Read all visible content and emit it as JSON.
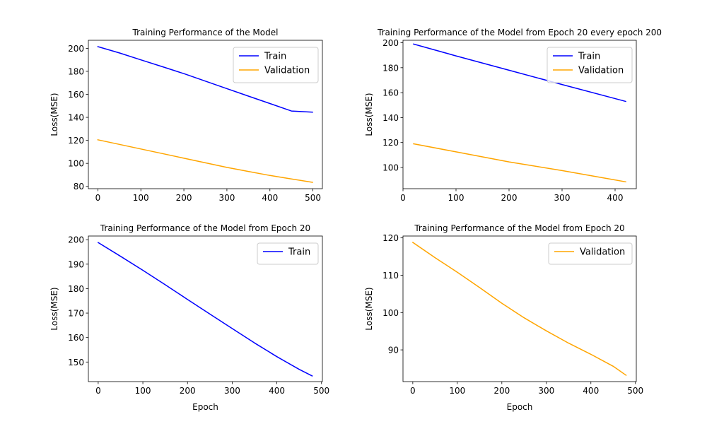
{
  "chart_data": [
    {
      "type": "line",
      "title": "Training Performance of the Model",
      "xlabel": "",
      "ylabel": "Loss(MSE)",
      "xlim": [
        -22,
        522
      ],
      "ylim": [
        78,
        207
      ],
      "xticks": [
        0,
        100,
        200,
        300,
        400,
        500
      ],
      "yticks": [
        80,
        100,
        120,
        140,
        160,
        180,
        200
      ],
      "legend": "top-right",
      "grid": false,
      "series": [
        {
          "name": "Train",
          "color": "#0000ff",
          "x": [
            0,
            50,
            100,
            150,
            200,
            250,
            300,
            350,
            400,
            450,
            499
          ],
          "y": [
            201.5,
            196,
            190,
            184,
            178,
            171.5,
            165,
            158.5,
            152,
            145.5,
            144.5
          ]
        },
        {
          "name": "Validation",
          "color": "#ffa500",
          "x": [
            0,
            50,
            100,
            150,
            200,
            250,
            300,
            350,
            400,
            450,
            499
          ],
          "y": [
            120.5,
            116.5,
            112.5,
            108.5,
            104.5,
            100.5,
            96.5,
            93,
            89.5,
            86.5,
            83.5
          ]
        }
      ]
    },
    {
      "type": "line",
      "title": "Training Performance of the Model from Epoch 20 every epoch 200",
      "xlabel": "",
      "ylabel": "Loss(MSE)",
      "xlim": [
        0,
        440
      ],
      "ylim": [
        83,
        202
      ],
      "xticks": [
        0,
        100,
        200,
        300,
        400
      ],
      "yticks": [
        100,
        120,
        140,
        160,
        180,
        200
      ],
      "legend": "top-right",
      "grid": false,
      "series": [
        {
          "name": "Train",
          "color": "#0000ff",
          "x": [
            20,
            100,
            200,
            300,
            420
          ],
          "y": [
            199,
            189.5,
            178,
            166.5,
            153
          ]
        },
        {
          "name": "Validation",
          "color": "#ffa500",
          "x": [
            20,
            100,
            200,
            300,
            420
          ],
          "y": [
            119,
            112.5,
            104.5,
            97.5,
            88.5
          ]
        }
      ]
    },
    {
      "type": "line",
      "title": "Training Performance of the Model from Epoch 20",
      "xlabel": "Epoch",
      "ylabel": "Loss(MSE)",
      "xlim": [
        -22,
        502
      ],
      "ylim": [
        142,
        201.5
      ],
      "xticks": [
        0,
        100,
        200,
        300,
        400,
        500
      ],
      "yticks": [
        150,
        160,
        170,
        180,
        190,
        200
      ],
      "legend": "top-right",
      "grid": false,
      "series": [
        {
          "name": "Train",
          "color": "#0000ff",
          "x": [
            0,
            50,
            100,
            150,
            200,
            250,
            300,
            350,
            400,
            450,
            479
          ],
          "y": [
            198.8,
            193.2,
            187.5,
            181.6,
            175.6,
            169.6,
            163.7,
            157.8,
            152.2,
            147,
            144.3
          ]
        }
      ]
    },
    {
      "type": "line",
      "title": "Training Performance of the Model from Epoch 20",
      "xlabel": "Epoch",
      "ylabel": "Loss(MSE)",
      "xlim": [
        -22,
        502
      ],
      "ylim": [
        81.5,
        120.5
      ],
      "xticks": [
        0,
        100,
        200,
        300,
        400,
        500
      ],
      "yticks": [
        90,
        100,
        110,
        120
      ],
      "legend": "top-right",
      "grid": false,
      "series": [
        {
          "name": "Validation",
          "color": "#ffa500",
          "x": [
            0,
            50,
            100,
            150,
            200,
            250,
            300,
            350,
            400,
            450,
            479
          ],
          "y": [
            118.8,
            114.7,
            110.8,
            106.7,
            102.5,
            98.6,
            95.1,
            91.8,
            88.8,
            85.6,
            83.2
          ]
        }
      ]
    }
  ]
}
